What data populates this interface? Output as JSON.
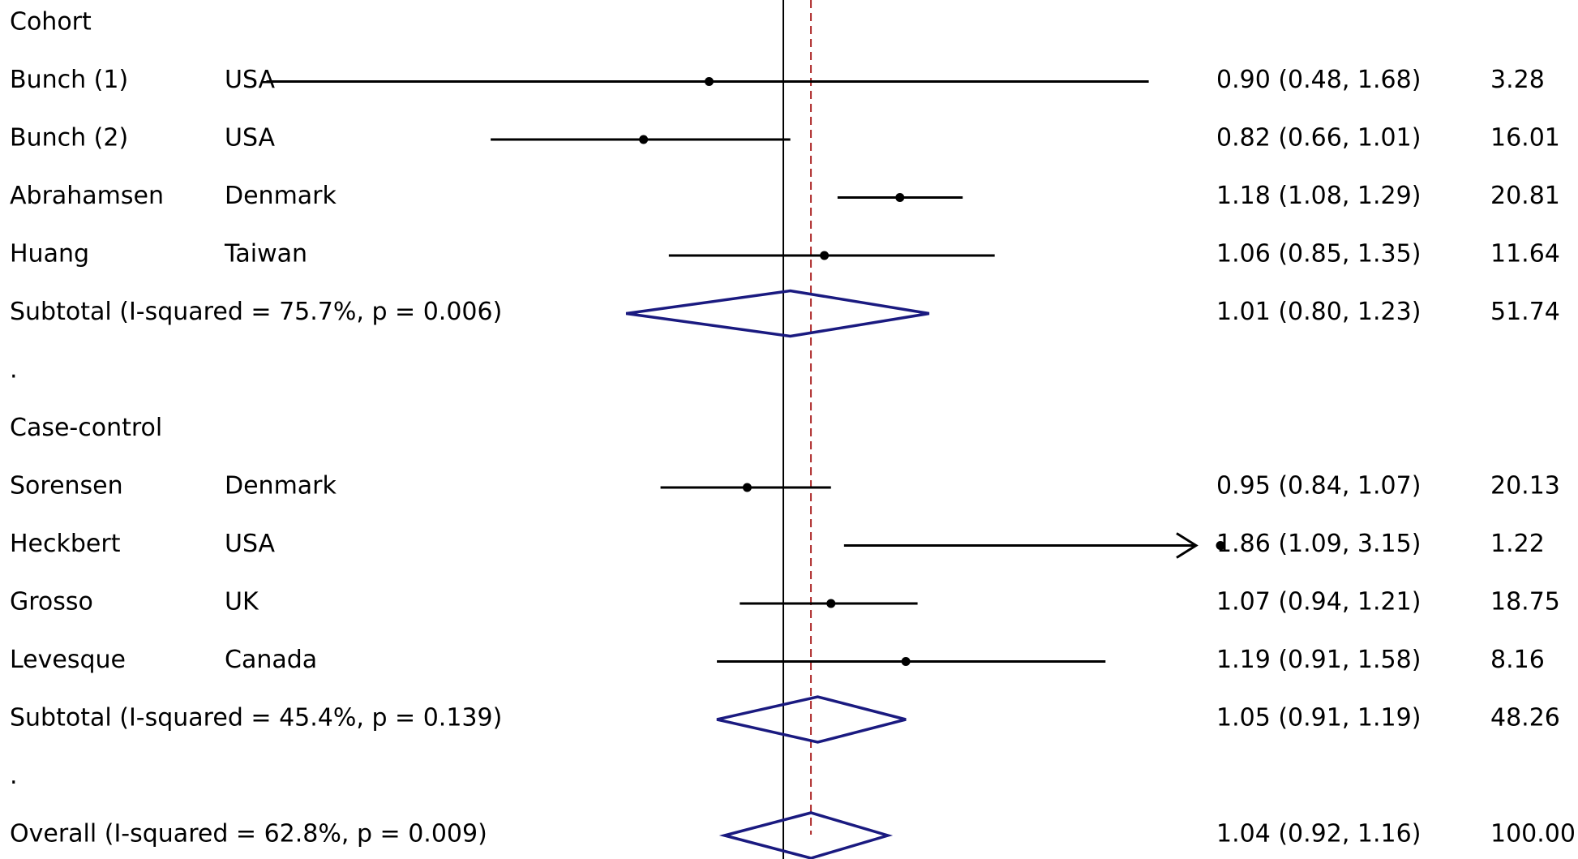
{
  "chart_data": {
    "type": "forest",
    "x_scale": "log",
    "null_value": 1.0,
    "overall_effect": 1.04,
    "rows": [
      {
        "kind": "group",
        "label": "Cohort"
      },
      {
        "kind": "study",
        "study": "Bunch (1)",
        "country": "USA",
        "es": 0.9,
        "ci": [
          0.48,
          1.68
        ],
        "es_text": "0.90 (0.48, 1.68)",
        "weight": "3.28"
      },
      {
        "kind": "study",
        "study": "Bunch (2)",
        "country": "USA",
        "es": 0.82,
        "ci": [
          0.66,
          1.01
        ],
        "es_text": "0.82 (0.66, 1.01)",
        "weight": "16.01"
      },
      {
        "kind": "study",
        "study": "Abrahamsen",
        "country": "Denmark",
        "es": 1.18,
        "ci": [
          1.08,
          1.29
        ],
        "es_text": "1.18 (1.08, 1.29)",
        "weight": "20.81"
      },
      {
        "kind": "study",
        "study": "Huang",
        "country": "Taiwan",
        "es": 1.06,
        "ci": [
          0.85,
          1.35
        ],
        "es_text": "1.06 (0.85, 1.35)",
        "weight": "11.64"
      },
      {
        "kind": "subtotal",
        "label": "Subtotal  (I-squared = 75.7%, p = 0.006)",
        "es": 1.01,
        "ci": [
          0.8,
          1.23
        ],
        "es_text": "1.01 (0.80, 1.23)",
        "weight": "51.74"
      },
      {
        "kind": "spacer",
        "label": "."
      },
      {
        "kind": "group",
        "label": "Case-control"
      },
      {
        "kind": "study",
        "study": "Sorensen",
        "country": "Denmark",
        "es": 0.95,
        "ci": [
          0.84,
          1.07
        ],
        "es_text": "0.95 (0.84, 1.07)",
        "weight": "20.13"
      },
      {
        "kind": "study",
        "study": "Heckbert",
        "country": "USA",
        "es": 1.86,
        "ci": [
          1.09,
          3.15
        ],
        "es_text": "1.86 (1.09, 3.15)",
        "weight": "1.22"
      },
      {
        "kind": "study",
        "study": "Grosso",
        "country": "UK",
        "es": 1.07,
        "ci": [
          0.94,
          1.21
        ],
        "es_text": "1.07 (0.94, 1.21)",
        "weight": "18.75"
      },
      {
        "kind": "study",
        "study": "Levesque",
        "country": "Canada",
        "es": 1.19,
        "ci": [
          0.91,
          1.58
        ],
        "es_text": "1.19 (0.91, 1.58)",
        "weight": "8.16"
      },
      {
        "kind": "subtotal",
        "label": "Subtotal  (I-squared = 45.4%, p = 0.139)",
        "es": 1.05,
        "ci": [
          0.91,
          1.19
        ],
        "es_text": "1.05 (0.91, 1.19)",
        "weight": "48.26"
      },
      {
        "kind": "spacer",
        "label": "."
      },
      {
        "kind": "overall",
        "label": "Overall  (I-squared = 62.8%, p = 0.009)",
        "es": 1.04,
        "ci": [
          0.92,
          1.16
        ],
        "es_text": "1.04 (0.92, 1.16)",
        "weight": "100.00"
      }
    ],
    "colors": {
      "line": "#000000",
      "diamond": "#1a1a80",
      "overall_line": "#b03030"
    }
  }
}
